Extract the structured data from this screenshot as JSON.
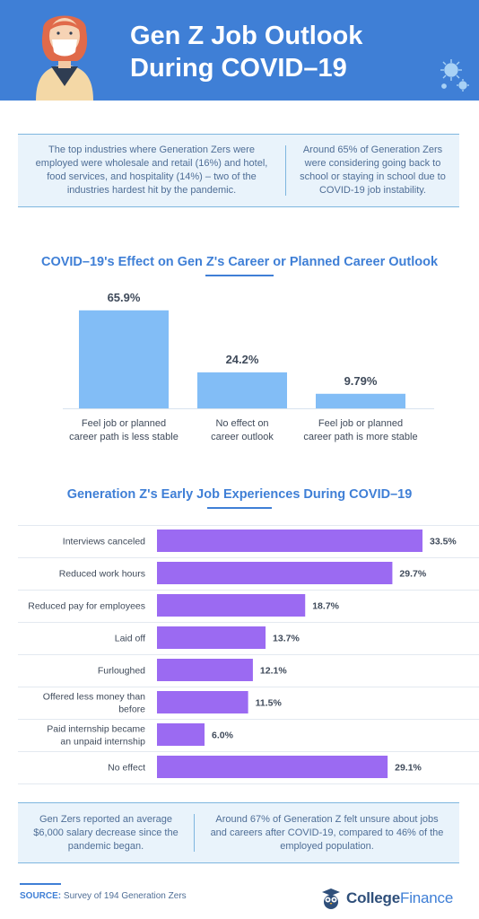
{
  "header": {
    "title_line1": "Gen Z Job Outlook",
    "title_line2": "During COVID–19"
  },
  "top_panel": {
    "left": "The top industries where Generation Zers were employed were wholesale and retail (16%) and hotel, food services, and hospitality (14%) – two of the industries hardest hit by the pandemic.",
    "right": "Around 65% of Generation Zers were considering going back to school or staying in school due to COVID-19 job instability."
  },
  "chart_data": [
    {
      "type": "bar",
      "title": "COVID–19's Effect on Gen Z's Career or Planned Career Outlook",
      "categories": [
        [
          "Feel job or planned",
          "career path is less stable"
        ],
        [
          "No effect on",
          "career outlook"
        ],
        [
          "Feel job or planned",
          "career path is more stable"
        ]
      ],
      "values": [
        65.9,
        24.2,
        9.79
      ],
      "value_labels": [
        "65.9%",
        "24.2%",
        "9.79%"
      ],
      "ylim": [
        0,
        70
      ],
      "color": "#82bdf6"
    },
    {
      "type": "bar",
      "orientation": "horizontal",
      "title": "Generation Z's Early Job Experiences During COVID–19",
      "categories": [
        [
          "Interviews canceled"
        ],
        [
          "Reduced work hours"
        ],
        [
          "Reduced pay for employees"
        ],
        [
          "Laid off"
        ],
        [
          "Furloughed"
        ],
        [
          "Offered less money than",
          "before"
        ],
        [
          "Paid internship became",
          "an unpaid internship"
        ],
        [
          "No effect"
        ]
      ],
      "values": [
        33.5,
        29.7,
        18.7,
        13.7,
        12.1,
        11.5,
        6.0,
        29.1
      ],
      "value_labels": [
        "33.5%",
        "29.7%",
        "18.7%",
        "13.7%",
        "12.1%",
        "11.5%",
        "6.0%",
        "29.1%"
      ],
      "xlim": [
        0,
        33.5
      ],
      "color": "#9b6af2"
    }
  ],
  "bottom_panel": {
    "left": "Gen Zers reported an average $6,000 salary decrease since the pandemic began.",
    "right": "Around 67% of Generation Z felt unsure about jobs and careers after COVID-19, compared to 46% of the employed population."
  },
  "footer": {
    "source_label": "SOURCE:",
    "source_text": "Survey of 194 Generation Zers",
    "logo_part1": "College",
    "logo_part2": "Finance"
  },
  "icons": {
    "avatar": "person-with-mask-icon",
    "virus": "virus-icon",
    "logo": "owl-icon"
  }
}
